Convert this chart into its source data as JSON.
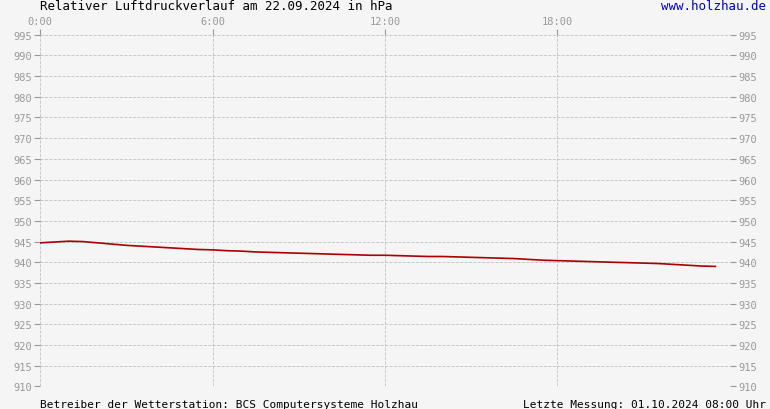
{
  "title": "Relativer Luftdruckverlauf am 22.09.2024 in hPa",
  "website": "www.holzhau.de",
  "footer_left": "Betreiber der Wetterstation: BCS Computersysteme Holzhau",
  "footer_right": "Letzte Messung: 01.10.2024 08:00 Uhr",
  "x_tick_labels": [
    "0:00",
    "6:00",
    "12:00",
    "18:00"
  ],
  "x_tick_positions": [
    0,
    6,
    12,
    18
  ],
  "ylim": [
    910,
    995
  ],
  "xlim": [
    0,
    24
  ],
  "y_ticks": [
    910,
    915,
    920,
    925,
    930,
    935,
    940,
    945,
    950,
    955,
    960,
    965,
    970,
    975,
    980,
    985,
    990,
    995
  ],
  "line_color": "#aa0000",
  "bg_color": "#f5f5f5",
  "grid_color": "#bbbbbb",
  "label_color": "#999999",
  "title_color": "#000000",
  "website_color": "#0000cc",
  "footer_color": "#000000",
  "pressure_data_x": [
    0.0,
    0.5,
    1.0,
    1.5,
    2.0,
    2.5,
    3.0,
    3.5,
    4.0,
    4.5,
    5.0,
    5.5,
    6.0,
    6.5,
    7.0,
    7.5,
    8.0,
    8.5,
    9.0,
    9.5,
    10.0,
    10.5,
    11.0,
    11.5,
    12.0,
    12.5,
    13.0,
    13.5,
    14.0,
    14.5,
    15.0,
    15.5,
    16.0,
    16.5,
    17.0,
    17.5,
    18.0,
    18.5,
    19.0,
    19.5,
    20.0,
    20.5,
    21.0,
    21.5,
    22.0,
    22.5,
    23.0,
    23.5
  ],
  "pressure_data_y": [
    944.7,
    944.9,
    945.1,
    945.0,
    944.7,
    944.4,
    944.1,
    943.9,
    943.7,
    943.5,
    943.3,
    943.1,
    943.0,
    942.8,
    942.7,
    942.5,
    942.4,
    942.3,
    942.2,
    942.1,
    942.0,
    941.9,
    941.8,
    941.7,
    941.7,
    941.6,
    941.5,
    941.4,
    941.4,
    941.3,
    941.2,
    941.1,
    941.0,
    940.9,
    940.7,
    940.5,
    940.4,
    940.3,
    940.2,
    940.1,
    940.0,
    939.9,
    939.8,
    939.7,
    939.5,
    939.3,
    939.1,
    939.0
  ]
}
